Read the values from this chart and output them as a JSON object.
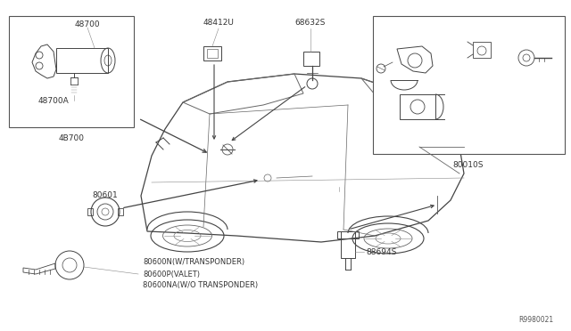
{
  "bg_color": "#ffffff",
  "line_color": "#444444",
  "text_color": "#333333",
  "ref_number": "R9980021",
  "label_48700": "48700",
  "label_48700A": "48700A",
  "label_4B700": "4B700",
  "label_48412U": "48412U",
  "label_68632S": "68632S",
  "label_80010S": "80010S",
  "label_80601": "80601",
  "label_80600N": "80600N(W/TRANSPONDER)",
  "label_80600P": "80600P(VALET)",
  "label_80600NA": "80600NA(W/O TRANSPONDER)",
  "label_88694S": "88694S",
  "fontsize_label": 6.5,
  "fontsize_ref": 5.5
}
